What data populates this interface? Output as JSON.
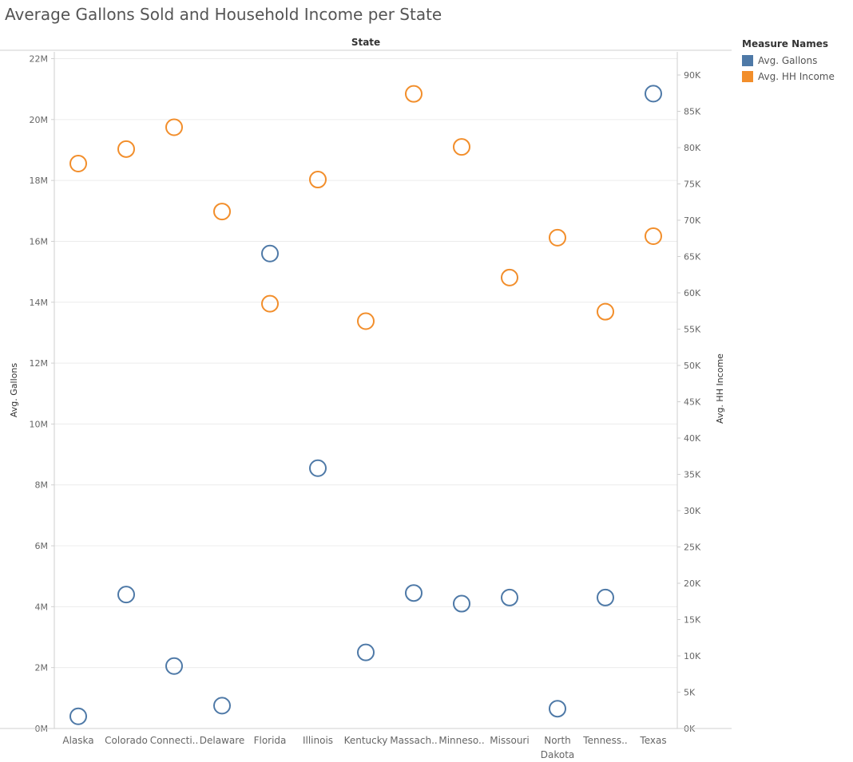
{
  "chart_data": {
    "type": "scatter",
    "title": "Average Gallons Sold and Household Income per State",
    "column_header": "State",
    "categories": [
      "Alaska",
      "Colorado",
      "Connecti..",
      "Delaware",
      "Florida",
      "Illinois",
      "Kentucky",
      "Massach..",
      "Minneso..",
      "Missouri",
      "North Dakota",
      "Tenness..",
      "Texas"
    ],
    "category_lines": [
      [
        "Alaska"
      ],
      [
        "Colorado"
      ],
      [
        "Connecti.."
      ],
      [
        "Delaware"
      ],
      [
        "Florida"
      ],
      [
        "Illinois"
      ],
      [
        "Kentucky"
      ],
      [
        "Massach.."
      ],
      [
        "Minneso.."
      ],
      [
        "Missouri"
      ],
      [
        "North",
        "Dakota"
      ],
      [
        "Tenness.."
      ],
      [
        "Texas"
      ]
    ],
    "y_left": {
      "label": "Avg. Gallons",
      "range": [
        0,
        22000000
      ],
      "ticks": [
        0,
        2000000,
        4000000,
        6000000,
        8000000,
        10000000,
        12000000,
        14000000,
        16000000,
        18000000,
        20000000,
        22000000
      ],
      "tick_labels": [
        "0M",
        "2M",
        "4M",
        "6M",
        "8M",
        "10M",
        "12M",
        "14M",
        "16M",
        "18M",
        "20M",
        "22M"
      ]
    },
    "y_right": {
      "label": "Avg. HH Income",
      "range": [
        0,
        90000
      ],
      "ticks": [
        0,
        5000,
        10000,
        15000,
        20000,
        25000,
        30000,
        35000,
        40000,
        45000,
        50000,
        55000,
        60000,
        65000,
        70000,
        75000,
        80000,
        85000,
        90000
      ],
      "tick_labels": [
        "0K",
        "5K",
        "10K",
        "15K",
        "20K",
        "25K",
        "30K",
        "35K",
        "40K",
        "45K",
        "50K",
        "55K",
        "60K",
        "65K",
        "70K",
        "75K",
        "80K",
        "85K",
        "90K"
      ]
    },
    "series": [
      {
        "name": "Avg. Gallons",
        "axis": "left",
        "color": "#4e79a7",
        "values": [
          400000,
          4400000,
          2050000,
          750000,
          15600000,
          8550000,
          2500000,
          4450000,
          4100000,
          4300000,
          650000,
          4300000,
          20850000
        ]
      },
      {
        "name": "Avg. HH Income",
        "axis": "right",
        "color": "#f28e2b",
        "values": [
          77800,
          79800,
          82800,
          71200,
          58500,
          75600,
          56100,
          87400,
          80100,
          62100,
          67600,
          57400,
          67800
        ]
      }
    ],
    "legend": {
      "title": "Measure Names",
      "position": "right"
    },
    "gridlines": true,
    "marker": "open-circle"
  }
}
